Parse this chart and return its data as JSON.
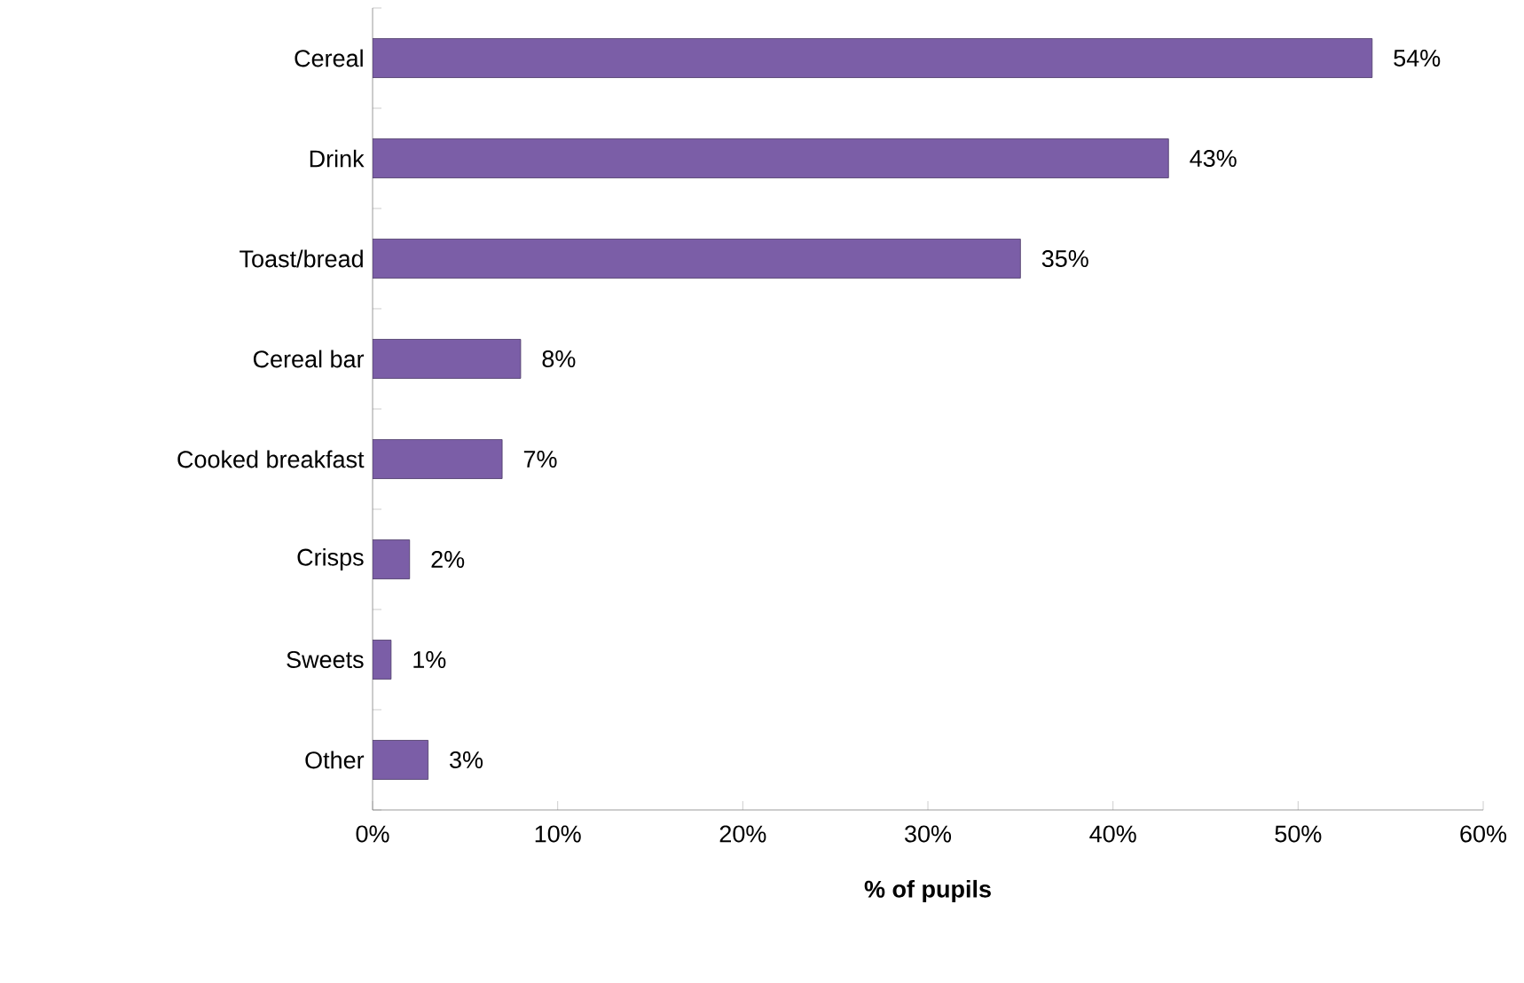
{
  "chart_data": {
    "type": "bar",
    "orientation": "horizontal",
    "xlabel": "% of pupils",
    "categories": [
      "Cereal",
      "Drink",
      "Toast/bread",
      "Cereal bar",
      "Cooked breakfast",
      "Crisps",
      "Sweets",
      "Other"
    ],
    "values": [
      54,
      43,
      35,
      8,
      7,
      2,
      1,
      3
    ],
    "value_labels": [
      "54%",
      "43%",
      "35%",
      "8%",
      "7%",
      "2%",
      "1%",
      "3%"
    ],
    "color": "#7b5ea7",
    "xlim": [
      0,
      60
    ],
    "xticks": [
      {
        "value": 0,
        "label": "0%"
      },
      {
        "value": 10,
        "label": "10%"
      },
      {
        "value": 20,
        "label": "20%"
      },
      {
        "value": 30,
        "label": "30%"
      },
      {
        "value": 40,
        "label": "40%"
      },
      {
        "value": 50,
        "label": "50%"
      },
      {
        "value": 60,
        "label": "60%"
      }
    ]
  }
}
